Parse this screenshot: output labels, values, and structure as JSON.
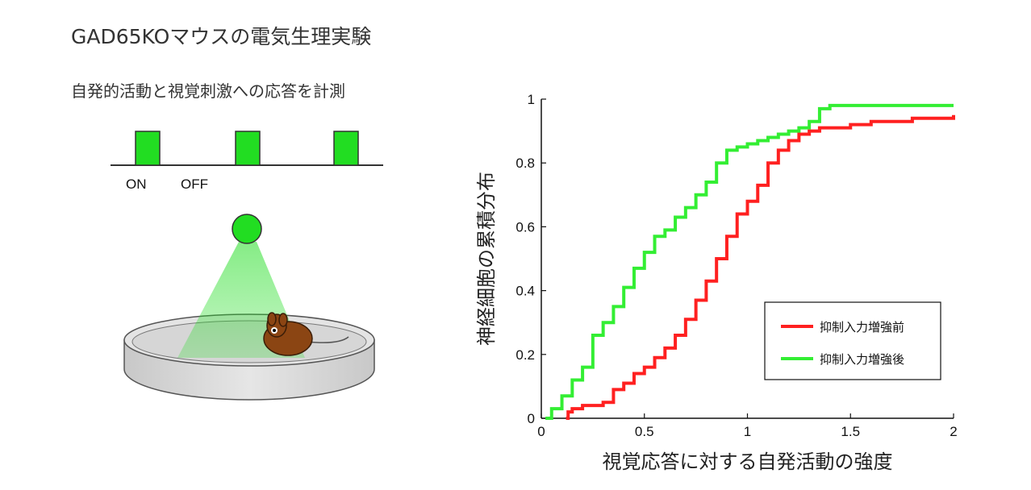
{
  "header": {
    "title": "GAD65KOマウスの電気生理実験",
    "subtitle": "自発的活動と視覚刺激への応答を計測"
  },
  "stimulus": {
    "on_label": "ON",
    "off_label": "OFF",
    "pulse_color": "#22dd22",
    "light_color": "#22dd22",
    "mouse_color": "#8b4513"
  },
  "chart_data": {
    "type": "line",
    "ylabel": "神経細胞の累積分布",
    "xlabel": "視覚応答に対する自発活動の強度",
    "xlim": [
      0,
      2
    ],
    "ylim": [
      0,
      1
    ],
    "xticks": [
      0,
      0.5,
      1,
      1.5,
      2
    ],
    "xtick_labels": [
      "0",
      "0.5",
      "1",
      "1.5",
      "2"
    ],
    "yticks": [
      0,
      0.2,
      0.4,
      0.6,
      0.8,
      1
    ],
    "ytick_labels": [
      "0",
      "0.2",
      "0.4",
      "0.6",
      "0.8",
      "1"
    ],
    "grid": false,
    "legend_position": "lower-right",
    "series": [
      {
        "name": "抑制入力増強前",
        "color": "#ff2020",
        "x": [
          0.12,
          0.13,
          0.15,
          0.2,
          0.3,
          0.35,
          0.4,
          0.45,
          0.5,
          0.55,
          0.6,
          0.65,
          0.7,
          0.75,
          0.8,
          0.85,
          0.9,
          0.95,
          1.0,
          1.05,
          1.1,
          1.15,
          1.2,
          1.25,
          1.3,
          1.35,
          1.4,
          1.5,
          1.6,
          1.7,
          1.8,
          1.9,
          2.0
        ],
        "y": [
          0.0,
          0.02,
          0.03,
          0.04,
          0.05,
          0.09,
          0.11,
          0.14,
          0.16,
          0.19,
          0.22,
          0.26,
          0.31,
          0.37,
          0.43,
          0.5,
          0.57,
          0.64,
          0.68,
          0.73,
          0.8,
          0.84,
          0.87,
          0.89,
          0.9,
          0.91,
          0.91,
          0.92,
          0.93,
          0.93,
          0.94,
          0.94,
          0.95
        ]
      },
      {
        "name": "抑制入力増強後",
        "color": "#33ee33",
        "x": [
          0.02,
          0.05,
          0.1,
          0.15,
          0.2,
          0.25,
          0.3,
          0.35,
          0.4,
          0.45,
          0.5,
          0.55,
          0.6,
          0.65,
          0.7,
          0.75,
          0.8,
          0.85,
          0.9,
          0.95,
          1.0,
          1.05,
          1.1,
          1.15,
          1.2,
          1.25,
          1.3,
          1.35,
          1.4,
          1.5,
          1.7,
          2.0
        ],
        "y": [
          0.0,
          0.03,
          0.07,
          0.12,
          0.16,
          0.26,
          0.3,
          0.35,
          0.41,
          0.47,
          0.52,
          0.57,
          0.59,
          0.63,
          0.66,
          0.7,
          0.74,
          0.8,
          0.84,
          0.85,
          0.86,
          0.87,
          0.88,
          0.89,
          0.9,
          0.91,
          0.93,
          0.97,
          0.98,
          0.98,
          0.98,
          0.98
        ]
      }
    ]
  }
}
